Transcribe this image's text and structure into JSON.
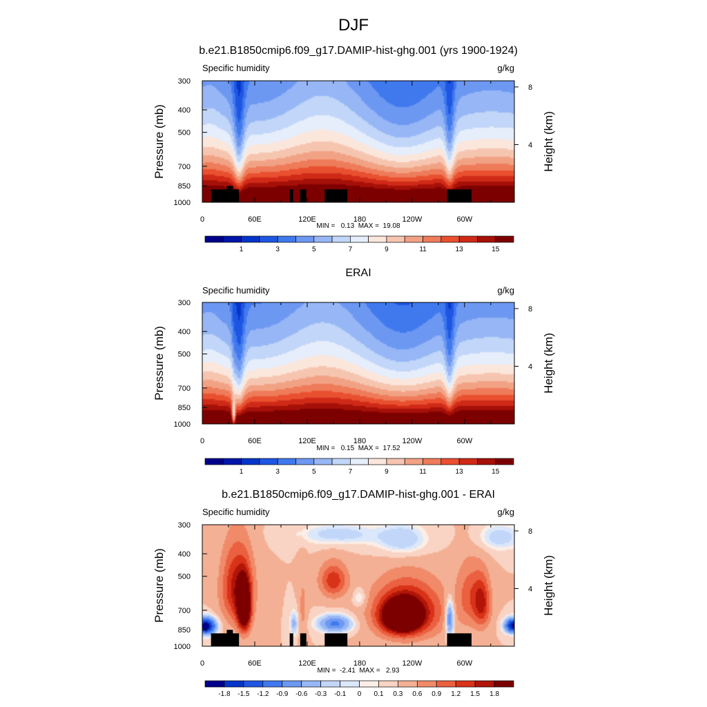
{
  "figure": {
    "title": "DJF"
  },
  "colors": {
    "abs_palette": [
      "#00008a",
      "#0016a8",
      "#0535c8",
      "#1e56e3",
      "#4079ee",
      "#6c98f2",
      "#97b6f5",
      "#c1d6f8",
      "#e6eefb",
      "#fbe6dc",
      "#f6c5b0",
      "#f2a284",
      "#ee7b5a",
      "#e9502f",
      "#cf2a17",
      "#a51008",
      "#7d0000"
    ],
    "diff_palette": [
      "#00008a",
      "#0535c8",
      "#1e56e3",
      "#4079ee",
      "#6c98f2",
      "#97b6f5",
      "#c1d6f8",
      "#dbe7fb",
      "#fbeee6",
      "#f9d3c3",
      "#f4b094",
      "#f08a68",
      "#ea6040",
      "#d83218",
      "#b01508",
      "#7d0000"
    ],
    "land": "#000000"
  },
  "chart_data": [
    {
      "type": "heatmap",
      "title": "b.e21.B1850cmip6.f09_g17.DAMIP-hist-ghg.001 (yrs 1900-1924)",
      "left_string": "Specific humidity",
      "right_string": "g/kg",
      "ylabel": "Pressure (mb)",
      "ylabel_right": "Height (km)",
      "x_ticks": [
        "0",
        "60E",
        "120E",
        "180",
        "120W",
        "60W"
      ],
      "x_tick_lon": [
        0,
        60,
        120,
        180,
        240,
        300
      ],
      "xlim": [
        0,
        357
      ],
      "y_ticks": [
        "300",
        "400",
        "500",
        "700",
        "850",
        "1000"
      ],
      "y_tick_p": [
        300,
        400,
        500,
        700,
        850,
        1000
      ],
      "ylim": [
        1000,
        300
      ],
      "height_ticks": [
        "8",
        "4"
      ],
      "height_tick_km": [
        8,
        4
      ],
      "stats": "MIN =   0.13  MAX =  19.08",
      "colorbar_labels": [
        "1",
        "3",
        "5",
        "7",
        "9",
        "11",
        "13",
        "15"
      ],
      "colorbar_levels": [
        1,
        3,
        5,
        7,
        9,
        11,
        13,
        15
      ],
      "levels": [
        0.5,
        1,
        2,
        3,
        4,
        5,
        6,
        7,
        8,
        9,
        10,
        11,
        12,
        13,
        14,
        15
      ],
      "land_masks": [
        {
          "lon0": 10,
          "lon1": 42,
          "p0": 880
        },
        {
          "lon0": 28,
          "lon1": 35,
          "p0": 850
        },
        {
          "lon0": 100,
          "lon1": 104,
          "p0": 880
        },
        {
          "lon0": 112,
          "lon1": 119,
          "p0": 880
        },
        {
          "lon0": 140,
          "lon1": 166,
          "p0": 880
        },
        {
          "lon0": 280,
          "lon1": 308,
          "p0": 880
        }
      ]
    },
    {
      "type": "heatmap",
      "title": "ERAI",
      "left_string": "Specific humidity",
      "right_string": "g/kg",
      "ylabel": "Pressure (mb)",
      "ylabel_right": "Height (km)",
      "x_ticks": [
        "0",
        "60E",
        "120E",
        "180",
        "120W",
        "60W"
      ],
      "x_tick_lon": [
        0,
        60,
        120,
        180,
        240,
        300
      ],
      "xlim": [
        0,
        357
      ],
      "y_ticks": [
        "300",
        "400",
        "500",
        "700",
        "850",
        "1000"
      ],
      "y_tick_p": [
        300,
        400,
        500,
        700,
        850,
        1000
      ],
      "ylim": [
        1000,
        300
      ],
      "height_ticks": [
        "8",
        "4"
      ],
      "height_tick_km": [
        8,
        4
      ],
      "stats": "MIN =   0.15  MAX =  17.52",
      "colorbar_labels": [
        "1",
        "3",
        "5",
        "7",
        "9",
        "11",
        "13",
        "15"
      ],
      "colorbar_levels": [
        1,
        3,
        5,
        7,
        9,
        11,
        13,
        15
      ],
      "levels": [
        0.5,
        1,
        2,
        3,
        4,
        5,
        6,
        7,
        8,
        9,
        10,
        11,
        12,
        13,
        14,
        15
      ],
      "land_masks": []
    },
    {
      "type": "heatmap",
      "title": "b.e21.B1850cmip6.f09_g17.DAMIP-hist-ghg.001 - ERAI",
      "left_string": "Specific humidity",
      "right_string": "g/kg",
      "ylabel": "Pressure (mb)",
      "ylabel_right": "Height (km)",
      "x_ticks": [
        "0",
        "60E",
        "120E",
        "180",
        "120W",
        "60W"
      ],
      "x_tick_lon": [
        0,
        60,
        120,
        180,
        240,
        300
      ],
      "xlim": [
        0,
        357
      ],
      "y_ticks": [
        "300",
        "400",
        "500",
        "700",
        "850",
        "1000"
      ],
      "y_tick_p": [
        300,
        400,
        500,
        700,
        850,
        1000
      ],
      "ylim": [
        1000,
        300
      ],
      "height_ticks": [
        "8",
        "4"
      ],
      "height_tick_km": [
        8,
        4
      ],
      "stats": "MIN =  -2.41  MAX =   2.93",
      "colorbar_labels": [
        "-1.8",
        "-1.5",
        "-1.2",
        "-0.9",
        "-0.6",
        "-0.3",
        "-0.1",
        "0",
        "0.1",
        "0.3",
        "0.6",
        "0.9",
        "1.2",
        "1.5",
        "1.8"
      ],
      "levels": [
        -1.8,
        -1.5,
        -1.2,
        -0.9,
        -0.6,
        -0.3,
        -0.1,
        0,
        0.1,
        0.3,
        0.6,
        0.9,
        1.2,
        1.5,
        1.8
      ],
      "land_masks": [
        {
          "lon0": 10,
          "lon1": 42,
          "p0": 880
        },
        {
          "lon0": 28,
          "lon1": 35,
          "p0": 850
        },
        {
          "lon0": 100,
          "lon1": 104,
          "p0": 880
        },
        {
          "lon0": 112,
          "lon1": 119,
          "p0": 880
        },
        {
          "lon0": 140,
          "lon1": 166,
          "p0": 880
        },
        {
          "lon0": 280,
          "lon1": 308,
          "p0": 880
        }
      ]
    }
  ]
}
